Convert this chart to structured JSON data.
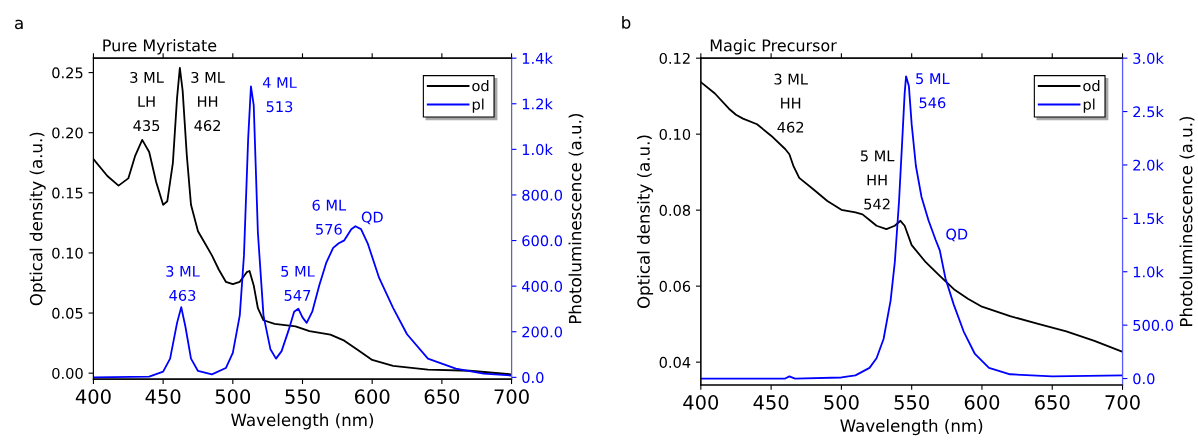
{
  "chart_data": [
    {
      "type": "line",
      "title": "Pure Myristate",
      "xlabel": "Wavelength (nm)",
      "ylabel": "Optical density (a.u.)",
      "y2label": "Photoluminescence (a.u.)",
      "xlim": [
        400,
        700
      ],
      "xticks": [
        400,
        450,
        500,
        550,
        600,
        650,
        700
      ],
      "ylim": [
        -0.005,
        0.262
      ],
      "yticks": [
        {
          "value": 0,
          "label": "0.00"
        },
        {
          "value": 0.05,
          "label": "0.05"
        },
        {
          "value": 0.1,
          "label": "0.10"
        },
        {
          "value": 0.15,
          "label": "0.15"
        },
        {
          "value": 0.2,
          "label": "0.20"
        },
        {
          "value": 0.25,
          "label": "0.25"
        }
      ],
      "y2lim": [
        -8,
        1400
      ],
      "y2ticks": [
        {
          "value": 0,
          "label": "0.0"
        },
        {
          "value": 200,
          "label": "200.0"
        },
        {
          "value": 400,
          "label": "400.0"
        },
        {
          "value": 600,
          "label": "600.0"
        },
        {
          "value": 800,
          "label": "800.0"
        },
        {
          "value": 1000,
          "label": "1.0k"
        },
        {
          "value": 1200,
          "label": "1.2k"
        },
        {
          "value": 1400,
          "label": "1.4k"
        }
      ],
      "legend": "top right",
      "series": [
        {
          "name": "od",
          "color": "#000000",
          "x": [
            400,
            410,
            418,
            425,
            430,
            435,
            440,
            445,
            450,
            453,
            457,
            460,
            462,
            464,
            467,
            470,
            475,
            480,
            485,
            490,
            495,
            500,
            505,
            510,
            512,
            515,
            518,
            522,
            530,
            545,
            555,
            570,
            580,
            590,
            600,
            615,
            640,
            670,
            700
          ],
          "values": [
            0.178,
            0.164,
            0.156,
            0.162,
            0.181,
            0.194,
            0.184,
            0.159,
            0.14,
            0.143,
            0.175,
            0.229,
            0.254,
            0.235,
            0.181,
            0.14,
            0.118,
            0.108,
            0.098,
            0.086,
            0.076,
            0.074,
            0.076,
            0.084,
            0.085,
            0.073,
            0.054,
            0.044,
            0.041,
            0.039,
            0.035,
            0.032,
            0.027,
            0.019,
            0.011,
            0.006,
            0.003,
            0.002,
            -0.001
          ]
        },
        {
          "name": "pl",
          "color": "#0000ff",
          "axis": "y2",
          "x": [
            400,
            440,
            450,
            455,
            460,
            463,
            466,
            470,
            475,
            485,
            495,
            500,
            505,
            508,
            511,
            513,
            515,
            518,
            522,
            527,
            531,
            535,
            540,
            544,
            547,
            550,
            553,
            557,
            562,
            567,
            572,
            576,
            580,
            585,
            588,
            592,
            597,
            605,
            615,
            625,
            640,
            660,
            680,
            700
          ],
          "values": [
            0,
            3,
            25,
            82,
            239,
            308,
            222,
            82,
            28,
            13,
            41,
            107,
            272,
            535,
            1045,
            1276,
            1194,
            634,
            272,
            123,
            82,
            115,
            206,
            288,
            301,
            263,
            239,
            288,
            403,
            502,
            568,
            588,
            601,
            650,
            663,
            650,
            584,
            436,
            305,
            189,
            82,
            38,
            16,
            8
          ]
        }
      ],
      "annotations": [
        "a",
        "3 ML\nLH\n435",
        "3 ML\nHH\n462",
        "4 ML\n513",
        "3 ML\n463",
        "5 ML\n547",
        "6 ML\n576",
        "QD"
      ]
    },
    {
      "type": "line",
      "title": "Magic Precursor",
      "xlabel": "Wavelength (nm)",
      "ylabel": "Optical density (a.u.)",
      "y2label": "Photoluminescence (a.u.)",
      "xlim": [
        400,
        700
      ],
      "xticks": [
        400,
        450,
        500,
        550,
        600,
        650,
        700
      ],
      "ylim": [
        0.034,
        0.12
      ],
      "yticks": [
        {
          "value": 0.04,
          "label": "0.04"
        },
        {
          "value": 0.06,
          "label": "0.06"
        },
        {
          "value": 0.08,
          "label": "0.08"
        },
        {
          "value": 0.1,
          "label": "0.10"
        },
        {
          "value": 0.12,
          "label": "0.12"
        }
      ],
      "y2lim": [
        -60,
        3000
      ],
      "y2ticks": [
        {
          "value": 0,
          "label": "0.0"
        },
        {
          "value": 500,
          "label": "500.0"
        },
        {
          "value": 1000,
          "label": "1.0k"
        },
        {
          "value": 1500,
          "label": "1.5k"
        },
        {
          "value": 2000,
          "label": "2.0k"
        },
        {
          "value": 2500,
          "label": "2.5k"
        },
        {
          "value": 3000,
          "label": "3.0k"
        }
      ],
      "legend": "top right",
      "series": [
        {
          "name": "od",
          "color": "#000000",
          "x": [
            400,
            410,
            420,
            425,
            430,
            440,
            450,
            460,
            463,
            466,
            470,
            480,
            490,
            500,
            510,
            515,
            520,
            525,
            532,
            538,
            542,
            545,
            550,
            560,
            570,
            580,
            590,
            600,
            620,
            640,
            660,
            680,
            700
          ],
          "values": [
            0.1137,
            0.1107,
            0.1067,
            0.1051,
            0.1041,
            0.1026,
            0.0996,
            0.0961,
            0.0947,
            0.0915,
            0.0885,
            0.0855,
            0.0824,
            0.0801,
            0.0794,
            0.0789,
            0.0774,
            0.0759,
            0.075,
            0.0759,
            0.0772,
            0.0759,
            0.0708,
            0.0663,
            0.0627,
            0.0592,
            0.0567,
            0.0546,
            0.0521,
            0.0501,
            0.0481,
            0.0456,
            0.0427
          ]
        },
        {
          "name": "pl",
          "color": "#0000ff",
          "axis": "y2",
          "x": [
            400,
            460,
            463,
            467,
            500,
            510,
            520,
            525,
            530,
            535,
            538,
            541,
            543,
            545,
            546,
            548,
            550,
            553,
            557,
            562,
            567,
            570,
            574,
            580,
            587,
            595,
            605,
            620,
            650,
            700
          ],
          "values": [
            0,
            0,
            20,
            0,
            10,
            30,
            100,
            190,
            370,
            730,
            1090,
            1660,
            2160,
            2670,
            2830,
            2740,
            2380,
            1990,
            1700,
            1480,
            1300,
            1200,
            940,
            690,
            440,
            230,
            100,
            40,
            20,
            30
          ]
        }
      ],
      "annotations": [
        "b",
        "3 ML\nHH\n462",
        "5 ML\nHH\n542",
        "5 ML\n546",
        "QD"
      ]
    }
  ]
}
